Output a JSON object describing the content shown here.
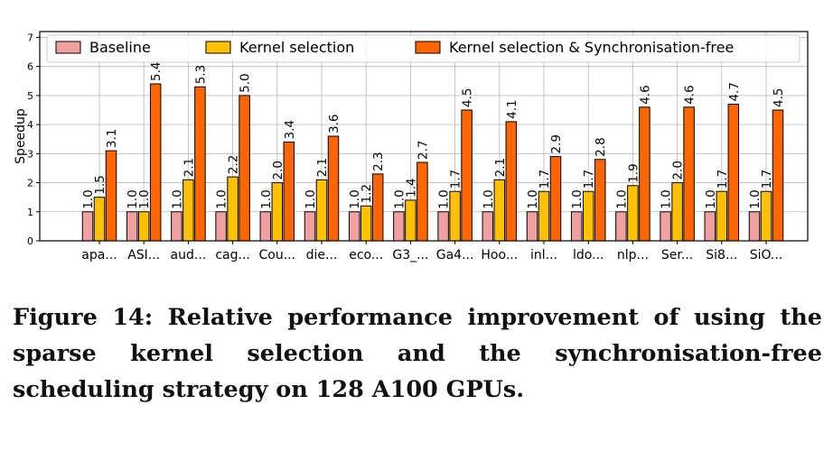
{
  "chart_data": {
    "type": "bar",
    "title": "",
    "xlabel": "",
    "ylabel": "Speedup",
    "ylim": [
      0,
      7.2
    ],
    "yticks": [
      0,
      1,
      2,
      3,
      4,
      5,
      6,
      7
    ],
    "grid": true,
    "legend_position": "top",
    "categories": [
      "apa...",
      "ASI...",
      "aud...",
      "cag...",
      "Cou...",
      "die...",
      "eco...",
      "G3_...",
      "Ga4...",
      "Hoo...",
      "inl...",
      "ldo...",
      "nlp...",
      "Ser...",
      "Si8...",
      "SiO..."
    ],
    "series": [
      {
        "name": "Baseline",
        "color": "#f0a0a0",
        "values": [
          1.0,
          1.0,
          1.0,
          1.0,
          1.0,
          1.0,
          1.0,
          1.0,
          1.0,
          1.0,
          1.0,
          1.0,
          1.0,
          1.0,
          1.0,
          1.0
        ]
      },
      {
        "name": "Kernel selection",
        "color": "#ffc000",
        "values": [
          1.5,
          1.0,
          2.1,
          2.2,
          2.0,
          2.1,
          1.2,
          1.4,
          1.7,
          2.1,
          1.7,
          1.7,
          1.9,
          2.0,
          1.7,
          1.7
        ]
      },
      {
        "name": "Kernel selection & Synchronisation-free",
        "color": "#ff6600",
        "values": [
          3.1,
          5.4,
          5.3,
          5.0,
          3.4,
          3.6,
          2.3,
          2.7,
          4.5,
          4.1,
          2.9,
          2.8,
          4.6,
          4.6,
          4.7,
          4.5
        ]
      }
    ]
  },
  "caption": "Figure 14: Relative performance improvement of using the sparse kernel selection and the synchronisation-free scheduling strategy on 128 A100 GPUs."
}
